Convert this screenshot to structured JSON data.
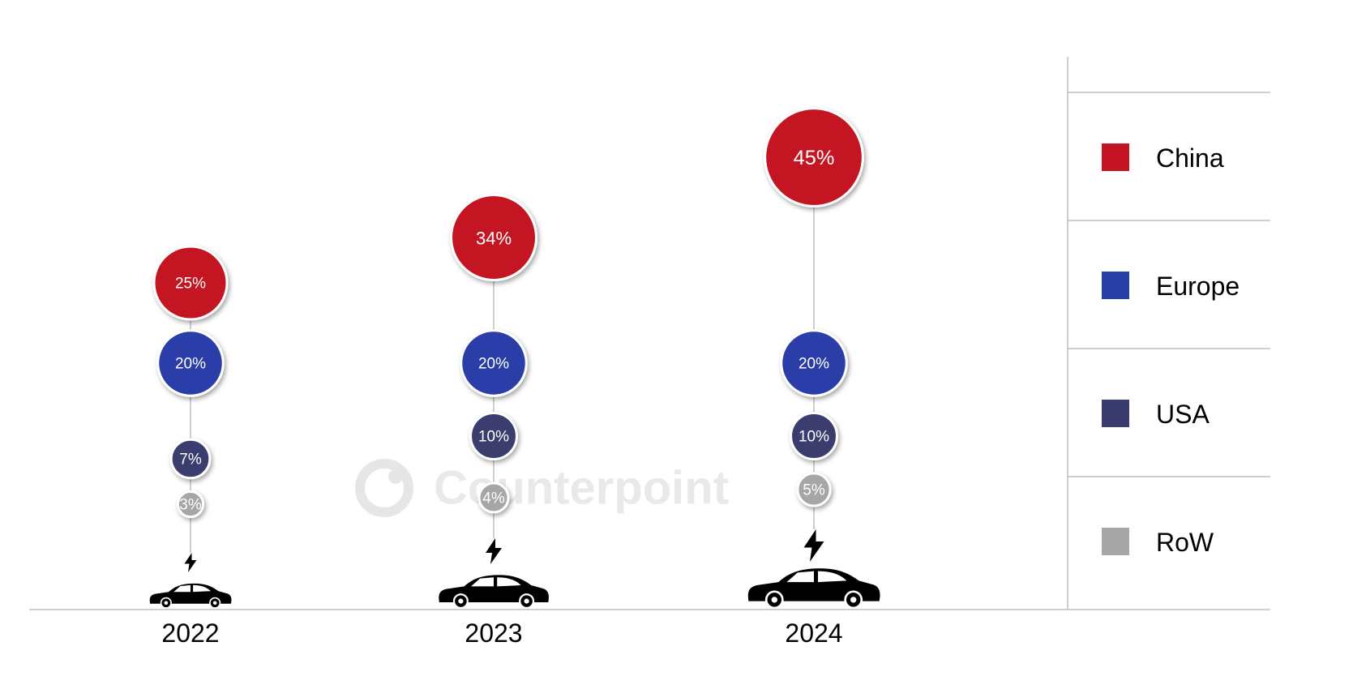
{
  "watermark": "Counterpoint",
  "colors": {
    "China": "#c41424",
    "Europe": "#2a3ea8",
    "USA": "#3b3c6e",
    "RoW": "#a6a6a6"
  },
  "chart_data": {
    "type": "bubble",
    "categories": [
      "2022",
      "2023",
      "2024"
    ],
    "series": [
      {
        "name": "China",
        "values": [
          25,
          34,
          45
        ],
        "labels": [
          "25%",
          "34%",
          "45%"
        ]
      },
      {
        "name": "Europe",
        "values": [
          20,
          20,
          20
        ],
        "labels": [
          "20%",
          "20%",
          "20%"
        ]
      },
      {
        "name": "USA",
        "values": [
          7,
          10,
          10
        ],
        "labels": [
          "7%",
          "10%",
          "10%"
        ]
      },
      {
        "name": "RoW",
        "values": [
          3,
          4,
          5
        ],
        "labels": [
          "3%",
          "4%",
          "5%"
        ]
      }
    ],
    "legend": [
      "China",
      "Europe",
      "USA",
      "RoW"
    ],
    "legend_position": "right",
    "unit": "%",
    "icons": [
      "electric-car-icon"
    ]
  }
}
